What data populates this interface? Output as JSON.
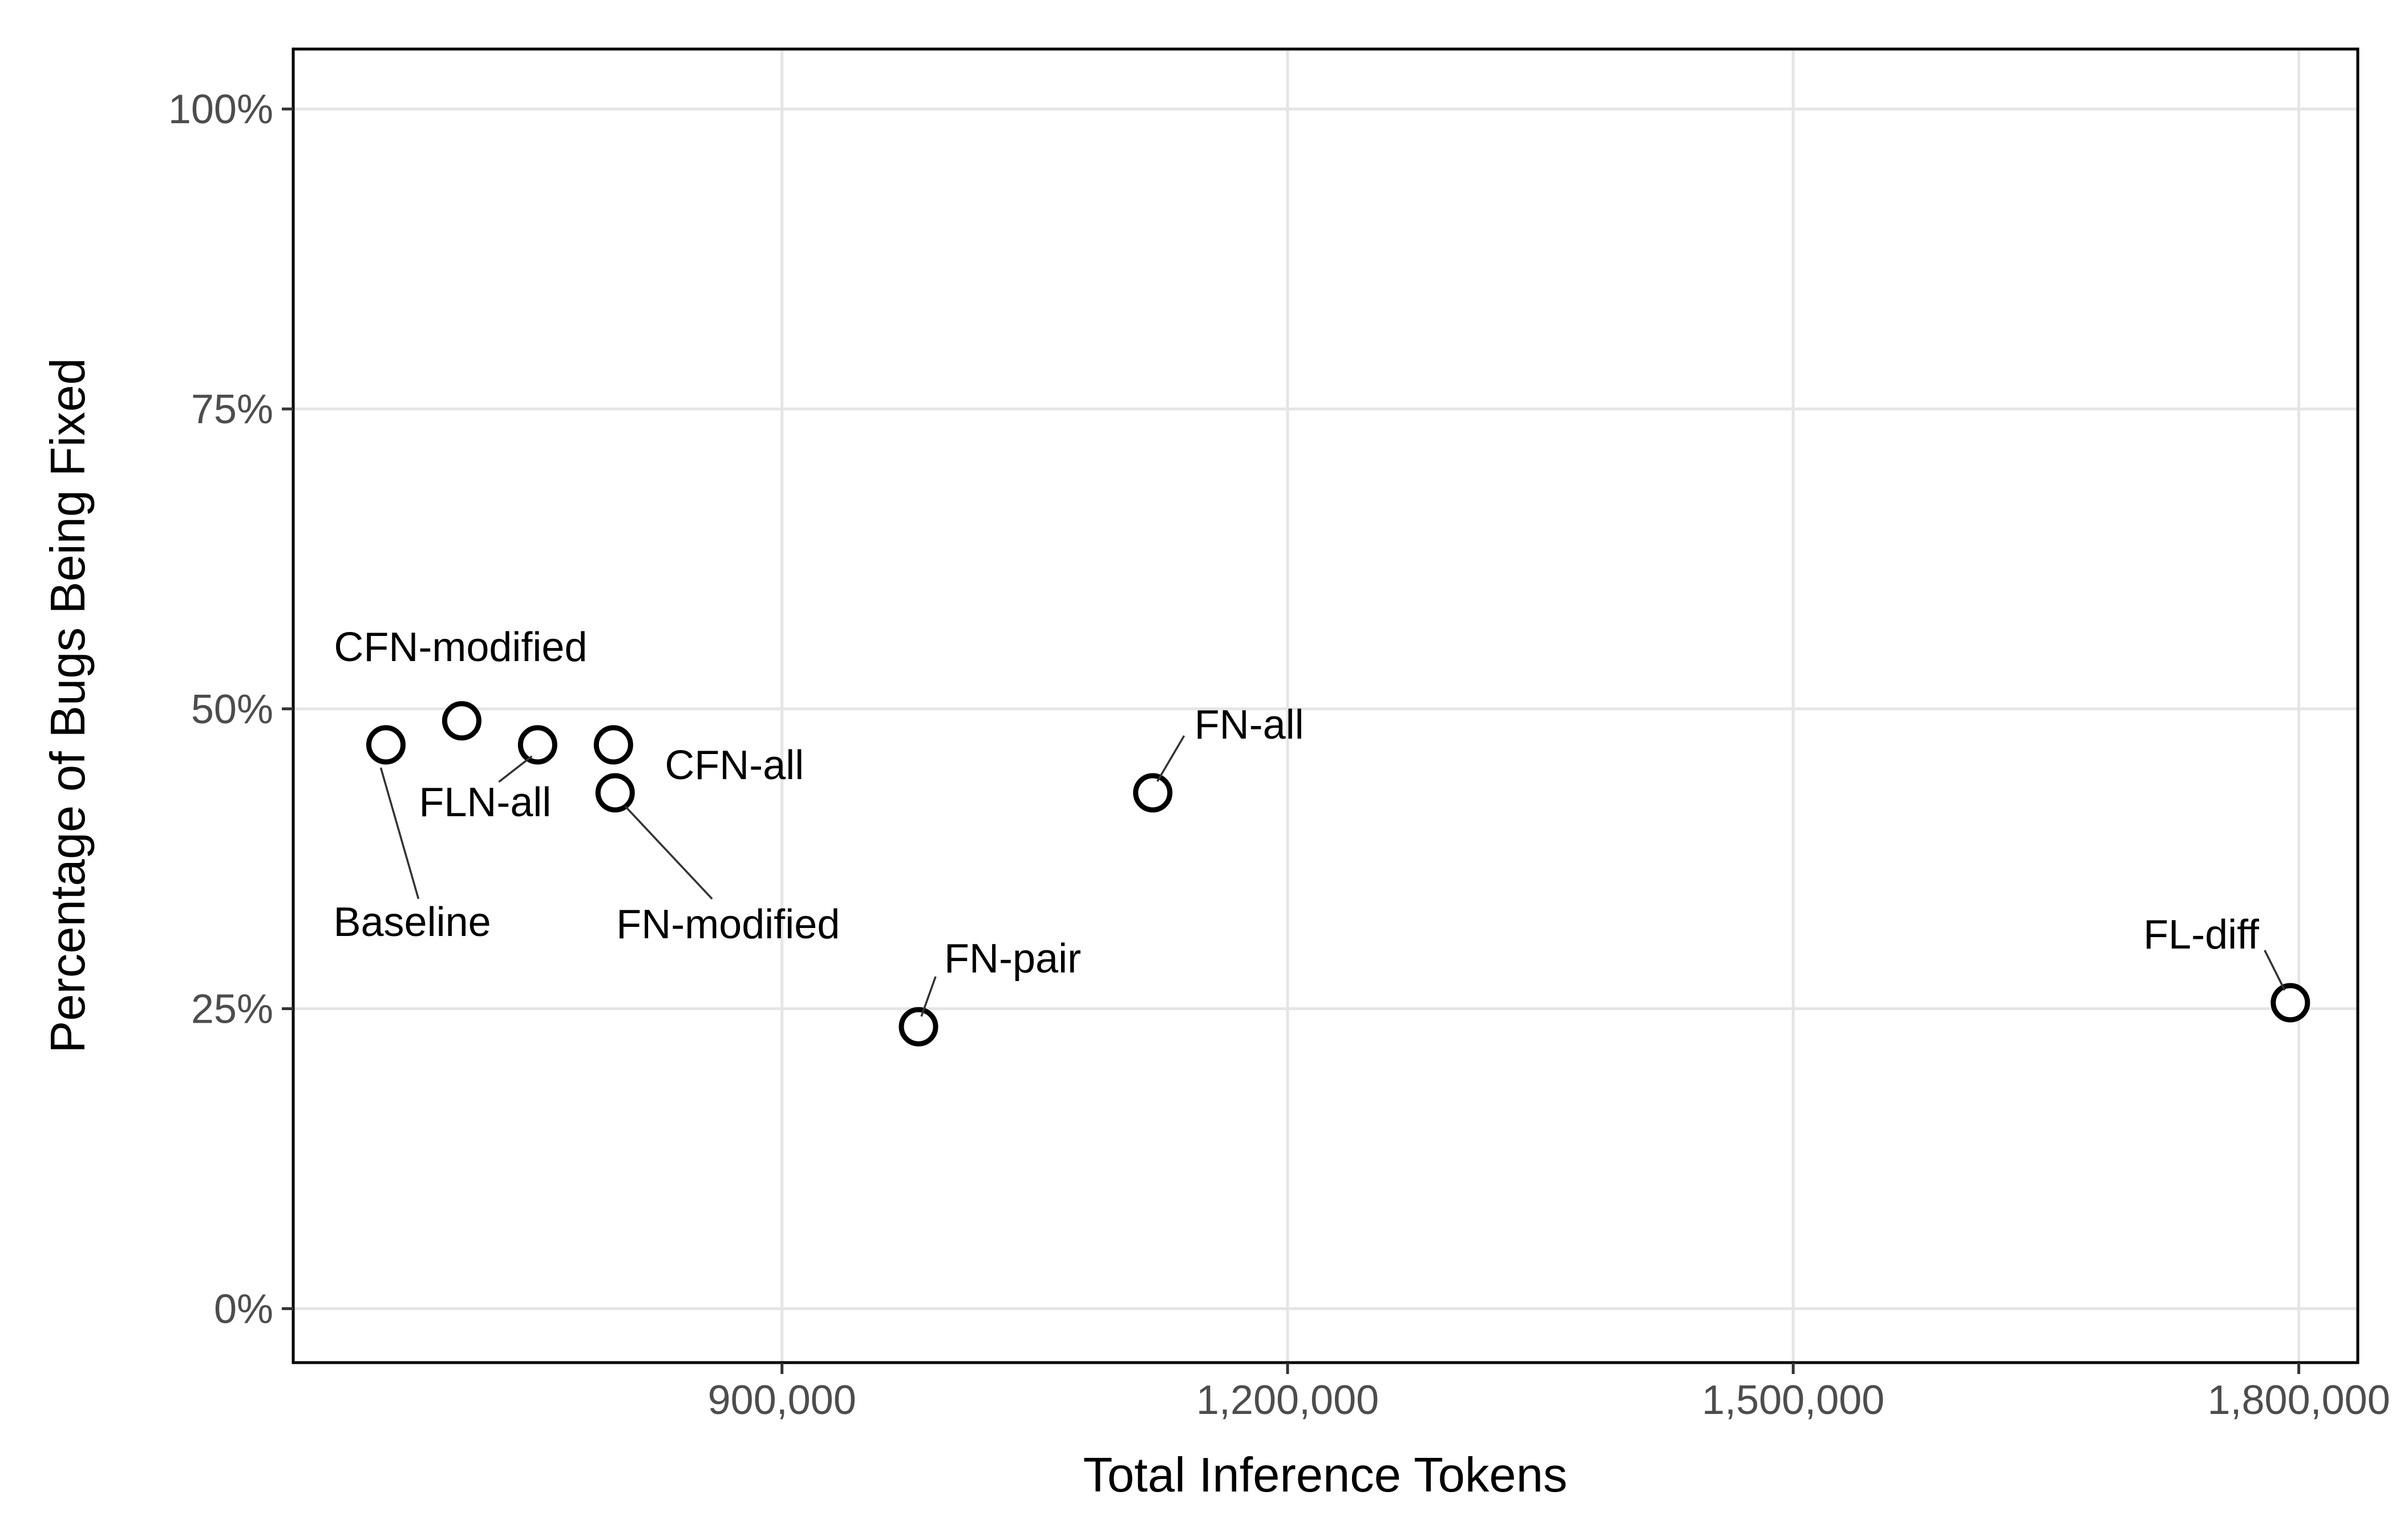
{
  "chart_data": {
    "type": "scatter",
    "xlabel": "Total Inference Tokens",
    "ylabel": "Percentage of Bugs Being Fixed",
    "xlim": [
      610000,
      1835000
    ],
    "ylim": [
      -4.5,
      105
    ],
    "x_ticks": [
      {
        "value": 900000,
        "label": "900,000"
      },
      {
        "value": 1200000,
        "label": "1,200,000"
      },
      {
        "value": 1500000,
        "label": "1,500,000"
      },
      {
        "value": 1800000,
        "label": "1,800,000"
      }
    ],
    "y_ticks": [
      {
        "value": 0,
        "label": "0%"
      },
      {
        "value": 25,
        "label": "25%"
      },
      {
        "value": 50,
        "label": "50%"
      },
      {
        "value": 75,
        "label": "75%"
      },
      {
        "value": 100,
        "label": "100%"
      }
    ],
    "grid": true,
    "points": [
      {
        "label": "Baseline",
        "x": 665000,
        "y": 47.0
      },
      {
        "label": "CFN-modified",
        "x": 710000,
        "y": 49.0
      },
      {
        "label": "FLN-all",
        "x": 755000,
        "y": 47.0
      },
      {
        "label": "CFN-all",
        "x": 800000,
        "y": 47.0
      },
      {
        "label": "FN-modified",
        "x": 801000,
        "y": 43.0
      },
      {
        "label": "FN-pair",
        "x": 981000,
        "y": 23.5
      },
      {
        "label": "FN-all",
        "x": 1120000,
        "y": 43.0
      },
      {
        "label": "FL-diff",
        "x": 1795000,
        "y": 25.5
      }
    ]
  }
}
